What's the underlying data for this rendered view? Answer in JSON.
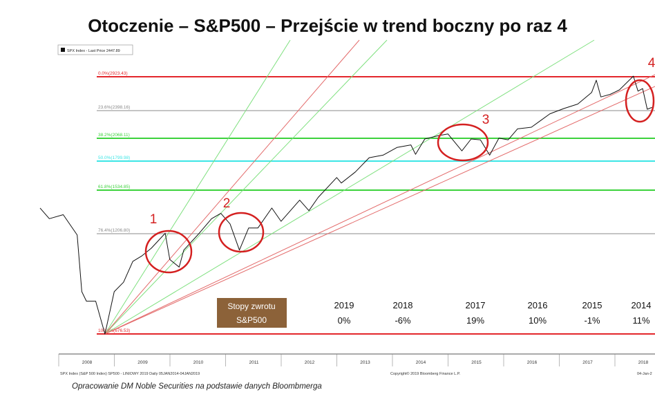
{
  "title": "Otoczenie – S&P500 – Przejście w trend boczny po raz 4",
  "legend": {
    "label": "SPX Index - Last Price 2447.89"
  },
  "footer_left": "SPX Index (S&P 500 Index) SP500 - LINIOWY 2019  Daily 05JAN2014-04JAN2019",
  "footer_center": "Copyright© 2019 Bloomberg Finance L.P.",
  "footer_right": "04-Jan-2",
  "source_note": "Opracowanie DM Noble Securities  na podstawie danych Bloombmerga",
  "returns_box": {
    "line1": "Stopy zwrotu",
    "line2": "S&P500",
    "color": "#8c6239"
  },
  "annual_returns": [
    {
      "year": "2019",
      "value": "0%"
    },
    {
      "year": "2018",
      "value": "-6%"
    },
    {
      "year": "2017",
      "value": "19%"
    },
    {
      "year": "2016",
      "value": "10%"
    },
    {
      "year": "2015",
      "value": "-1%"
    },
    {
      "year": "2014",
      "value": "11%"
    }
  ],
  "colors": {
    "fib_0": "#e3262b",
    "fib_23_6": "#a0a0a0",
    "fib_38_2": "#3cd23c",
    "fib_50": "#3ce6e6",
    "fib_61_8": "#3cd23c",
    "fib_76_4": "#a0a0a0",
    "fib_100": "#e3262b",
    "fan_green": "#7ee07e",
    "fan_red": "#e36a6a",
    "price": "#111111",
    "circle": "#d42020"
  },
  "chart_data": {
    "type": "line",
    "series": [
      {
        "name": "SPX Index - Last Price 2447.89",
        "x": [
          "2008-01",
          "2008-03",
          "2008-06",
          "2008-09",
          "2008-10",
          "2008-11",
          "2009-01",
          "2009-03",
          "2009-05",
          "2009-07",
          "2009-09",
          "2009-11",
          "2010-01",
          "2010-04",
          "2010-05",
          "2010-07",
          "2010-08",
          "2010-11",
          "2011-02",
          "2011-04",
          "2011-06",
          "2011-08",
          "2011-10",
          "2011-12",
          "2012-03",
          "2012-05",
          "2012-09",
          "2012-11",
          "2013-01",
          "2013-05",
          "2013-06",
          "2013-09",
          "2013-12",
          "2014-03",
          "2014-06",
          "2014-09",
          "2014-10",
          "2014-12",
          "2015-03",
          "2015-05",
          "2015-08",
          "2015-10",
          "2015-12",
          "2016-02",
          "2016-04",
          "2016-06",
          "2016-08",
          "2016-11",
          "2017-01",
          "2017-03",
          "2017-06",
          "2017-09",
          "2017-12",
          "2018-01",
          "2018-02",
          "2018-04",
          "2018-06",
          "2018-09",
          "2018-10",
          "2018-11",
          "2018-12",
          "2019-01"
        ],
        "y": [
          1400,
          1320,
          1350,
          1200,
          900,
          850,
          850,
          676,
          900,
          950,
          1060,
          1090,
          1130,
          1210,
          1070,
          1030,
          1120,
          1200,
          1320,
          1360,
          1280,
          1120,
          1250,
          1250,
          1400,
          1300,
          1460,
          1380,
          1480,
          1650,
          1600,
          1700,
          1840,
          1870,
          1960,
          1990,
          1880,
          2060,
          2100,
          2120,
          1920,
          2060,
          2050,
          1870,
          2070,
          2050,
          2180,
          2200,
          2280,
          2360,
          2430,
          2500,
          2680,
          2870,
          2610,
          2650,
          2720,
          2930,
          2700,
          2740,
          2420,
          2448
        ]
      }
    ],
    "fibonacci_levels": [
      {
        "label": "0.0%(2923.43)",
        "value": 2923.43
      },
      {
        "label": "23.6%(2398.16)",
        "value": 2398.16
      },
      {
        "label": "38.2%(2068.11)",
        "value": 2068.11
      },
      {
        "label": "50.0%(1799.98)",
        "value": 1799.98
      },
      {
        "label": "61.8%(1534.85)",
        "value": 1534.85
      },
      {
        "label": "76.4%(1206.80)",
        "value": 1206.8
      },
      {
        "label": "100.0%(676.53)",
        "value": 676.53
      }
    ],
    "x_tick_labels": [
      "2008",
      "2009",
      "2010",
      "2011",
      "2012",
      "2013",
      "2014",
      "2015",
      "2016",
      "2017",
      "2018",
      "201"
    ],
    "annotations": [
      "1",
      "2",
      "3",
      "4"
    ]
  }
}
